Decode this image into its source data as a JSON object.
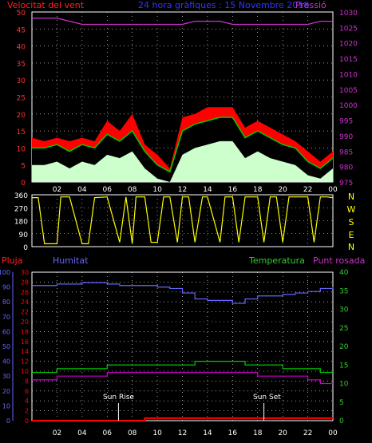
{
  "header": {
    "wind_label": "Velocitat del vent",
    "title": "24 hora gràfiques : 15 Novembre 2018",
    "pressure_label": "Pressió"
  },
  "legend": {
    "rain": "Pluja",
    "humidity": "Humitat",
    "temperature": "Temperatura",
    "dewpoint": "Punt rosada"
  },
  "x_ticks": [
    "02",
    "04",
    "06",
    "08",
    "10",
    "12",
    "14",
    "16",
    "18",
    "20",
    "22",
    "00"
  ],
  "dir_axis_labels": [
    "N",
    "W",
    "S",
    "E",
    "N"
  ],
  "annotations": {
    "sunrise": "Sun Rise",
    "sunset": "Sun Set"
  },
  "colors": {
    "wind_gust": "#ff0000",
    "wind_avg": "#00cc00",
    "wind_min": "#ccffcc",
    "pressure": "#cc33cc",
    "direction": "#ffff00",
    "rain": "#ff0000",
    "humidity": "#6666ff",
    "temperature": "#00cc00",
    "dewpoint": "#cc00cc",
    "wind_axis": "#ff3333",
    "pressure_axis": "#cc33cc",
    "temp_axis": "#33cc33",
    "grid": "#ffffff"
  },
  "chart_data": [
    {
      "type": "area",
      "x": [
        0,
        1,
        2,
        3,
        4,
        5,
        6,
        7,
        8,
        9,
        10,
        11,
        12,
        13,
        14,
        15,
        16,
        17,
        18,
        19,
        20,
        21,
        22,
        23,
        24
      ],
      "series": [
        {
          "name": "Velocitat del vent",
          "values": [
            10,
            10,
            11,
            9,
            11,
            10,
            14,
            12,
            15,
            9,
            5,
            3,
            15,
            17,
            18,
            19,
            19,
            13,
            15,
            13,
            11,
            10,
            6,
            4,
            7
          ]
        },
        {
          "name": "Pressió",
          "values": [
            1028,
            1028,
            1028,
            1027,
            1026,
            1026,
            1026,
            1026,
            1026,
            1026,
            1026,
            1026,
            1026,
            1027,
            1027,
            1027,
            1026,
            1026,
            1026,
            1026,
            1026,
            1026,
            1026,
            1027,
            1027
          ]
        }
      ],
      "gust": [
        13,
        12,
        13,
        12,
        13,
        12,
        18,
        15,
        20,
        11,
        8,
        4,
        19,
        20,
        22,
        22,
        22,
        16,
        18,
        16,
        14,
        12,
        9,
        6,
        9
      ],
      "min": [
        5,
        5,
        6,
        4,
        6,
        5,
        8,
        7,
        9,
        4,
        1,
        0,
        8,
        10,
        11,
        12,
        12,
        7,
        9,
        7,
        6,
        5,
        2,
        1,
        4
      ],
      "ylim": [
        0,
        50
      ],
      "yticks": [
        0,
        5,
        10,
        15,
        20,
        25,
        30,
        35,
        40,
        45,
        50
      ],
      "y2lim": [
        975,
        1030
      ],
      "y2ticks": [
        975,
        980,
        985,
        990,
        995,
        1000,
        1005,
        1010,
        1015,
        1020,
        1025,
        1030
      ],
      "grid": true
    },
    {
      "type": "line",
      "x": [
        0,
        0.5,
        1,
        2,
        2.3,
        3,
        4,
        4.5,
        5,
        6,
        7,
        7.5,
        8,
        8.3,
        9,
        9.5,
        10,
        10.5,
        11,
        11.6,
        12,
        12.5,
        13,
        13.6,
        14,
        15,
        15.4,
        16,
        16.5,
        17,
        18,
        18.5,
        19,
        19.5,
        20,
        20.5,
        21,
        21.5,
        22,
        22.5,
        23,
        23.5,
        24
      ],
      "series": [
        {
          "name": "",
          "values": [
            340,
            340,
            20,
            20,
            345,
            345,
            20,
            20,
            340,
            345,
            30,
            345,
            20,
            345,
            345,
            30,
            30,
            345,
            345,
            30,
            345,
            345,
            30,
            345,
            345,
            30,
            345,
            345,
            30,
            345,
            345,
            30,
            345,
            345,
            30,
            345,
            345,
            345,
            345,
            30,
            345,
            345,
            340
          ]
        }
      ],
      "ylim": [
        0,
        360
      ],
      "yticks": [
        0,
        90,
        180,
        270,
        360
      ],
      "grid": true
    },
    {
      "type": "line",
      "x": [
        0,
        1,
        2,
        3,
        4,
        5,
        6,
        7,
        8,
        9,
        10,
        11,
        12,
        13,
        14,
        15,
        16,
        17,
        18,
        19,
        20,
        21,
        22,
        23,
        24
      ],
      "series": [
        {
          "name": "Pluja",
          "values": [
            0,
            0,
            0,
            0,
            0,
            0,
            0,
            0,
            0,
            0.5,
            0.5,
            0.5,
            0.5,
            0.5,
            0.5,
            0.5,
            0.5,
            0.5,
            0.5,
            0.5,
            0.5,
            0.5,
            0.5,
            0.5,
            0.5
          ]
        },
        {
          "name": "Humitat",
          "values": [
            91,
            91,
            92,
            92,
            93,
            93,
            92,
            91,
            91,
            91,
            90,
            89,
            86,
            82,
            81,
            81,
            79,
            82,
            84,
            84,
            85,
            86,
            87,
            89,
            90
          ]
        },
        {
          "name": "Temperatura",
          "values": [
            13,
            13,
            14,
            14,
            14,
            14,
            15,
            15,
            15,
            15,
            15,
            15,
            15,
            16,
            16,
            16,
            16,
            15,
            15,
            15,
            14,
            14,
            14,
            13,
            13
          ]
        },
        {
          "name": "Punt rosada",
          "values": [
            11,
            11,
            12,
            12,
            12,
            12,
            13,
            13,
            13,
            13,
            13,
            13,
            13,
            13,
            13,
            13,
            13,
            13,
            12,
            12,
            12,
            12,
            11,
            10,
            10
          ]
        }
      ],
      "ylim": [
        0,
        30
      ],
      "yticks": [
        0,
        2,
        4,
        6,
        8,
        10,
        12,
        14,
        16,
        18,
        20,
        22,
        24,
        26,
        28,
        30
      ],
      "y2lim": [
        0,
        100
      ],
      "y2ticks": [
        0,
        10,
        20,
        30,
        40,
        50,
        60,
        70,
        80,
        90,
        100
      ],
      "y3lim": [
        0,
        40
      ],
      "y3ticks": [
        0,
        5,
        10,
        15,
        20,
        25,
        30,
        35,
        40
      ],
      "sunrise_hour": 6.9,
      "sunset_hour": 18.5,
      "grid": true
    }
  ]
}
